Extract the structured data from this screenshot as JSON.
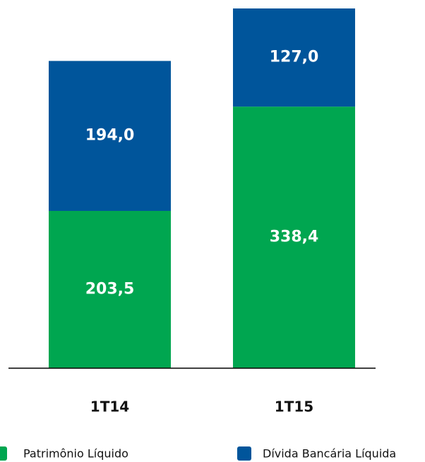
{
  "chart_data": {
    "type": "stacked_bar",
    "categories": [
      "1T14",
      "1T15"
    ],
    "series": [
      {
        "name": "Patrimônio Líquido",
        "color": "#00a650",
        "values": [
          203.5,
          338.4
        ],
        "value_labels": [
          "203,5",
          "338,4"
        ]
      },
      {
        "name": "Dívida Bancária Líquida",
        "color": "#00559b",
        "values": [
          194.0,
          127.0
        ],
        "value_labels": [
          "194,0",
          "127,0"
        ]
      }
    ],
    "legend": "bottom"
  }
}
